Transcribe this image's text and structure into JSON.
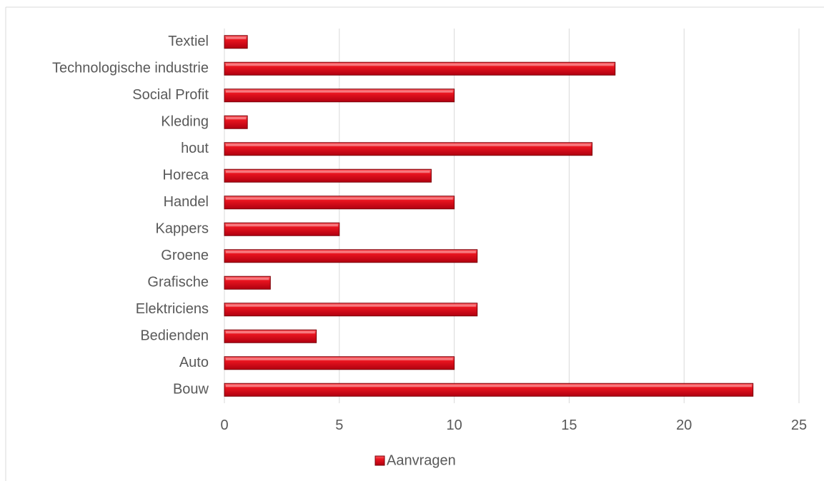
{
  "chart_data": {
    "type": "bar",
    "orientation": "horizontal",
    "categories": [
      "Bouw",
      "Auto",
      "Bedienden",
      "Elektriciens",
      "Grafische",
      "Groene",
      "Kappers",
      "Handel",
      "Horeca",
      "hout",
      "Kleding",
      "Social Profit",
      "Technologische industrie",
      "Textiel"
    ],
    "series": [
      {
        "name": "Aanvragen",
        "values": [
          23,
          10,
          4,
          11,
          2,
          11,
          5,
          10,
          9,
          16,
          1,
          10,
          17,
          1
        ],
        "color": "#e0101e"
      }
    ],
    "xlim": [
      0,
      25
    ],
    "xticks": [
      "0",
      "5",
      "10",
      "15",
      "20",
      "25"
    ],
    "grid": "vertical",
    "legend": "bottom-center",
    "colors": {
      "bar": "#e0101e",
      "bar_edge": "#7a0008",
      "grid": "#d9d9d9",
      "text": "#595959",
      "frame": "#d9d9d9"
    }
  }
}
